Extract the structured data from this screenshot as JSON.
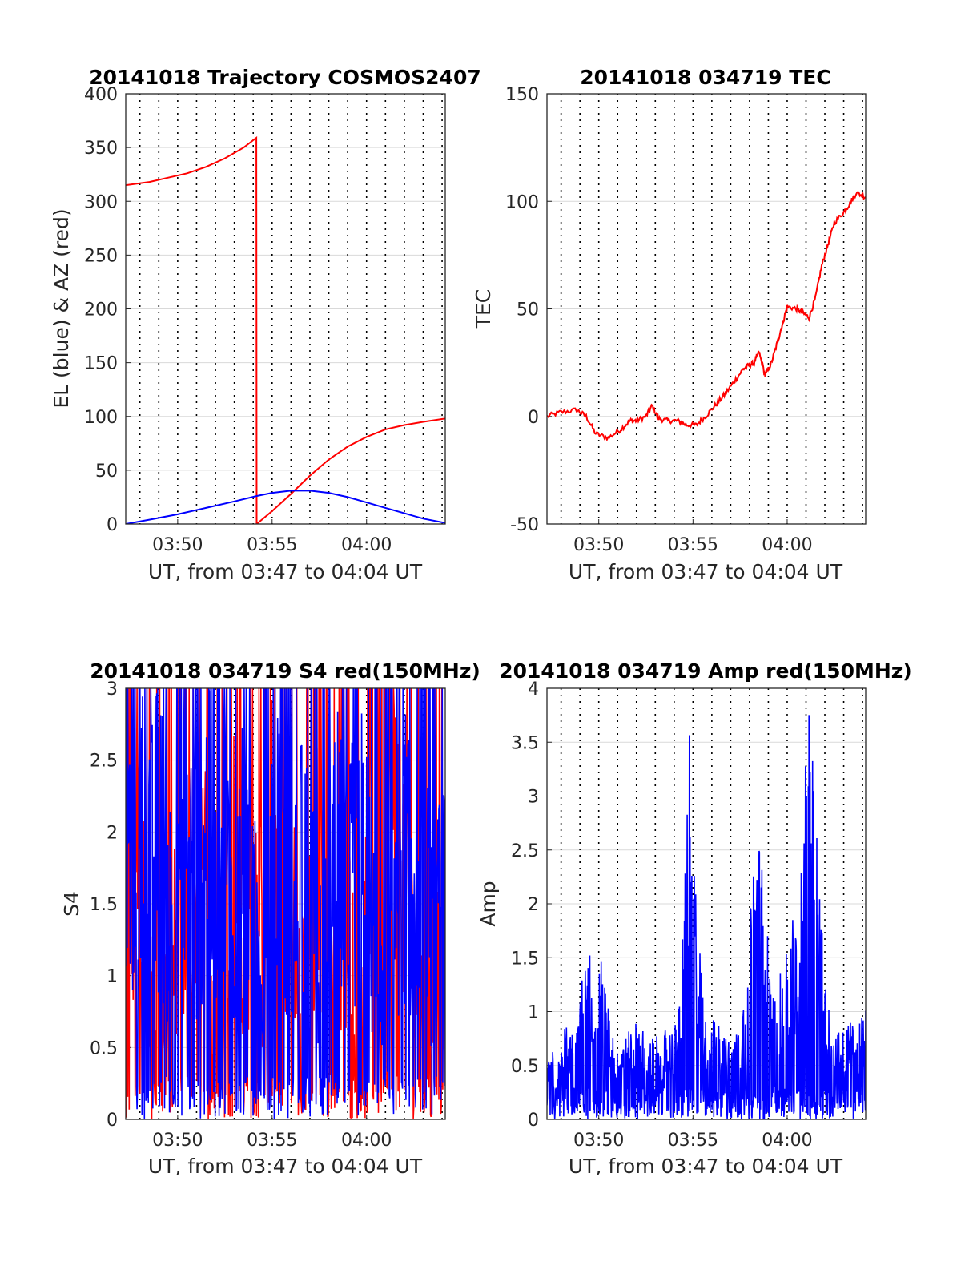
{
  "colors": {
    "red": "#ff0000",
    "blue": "#0000ff",
    "grid_h": "#d9d9d9",
    "grid_v": "#000000",
    "axes": "#262626"
  },
  "chart_data": [
    {
      "type": "line",
      "title": "20141018 Trajectory COSMOS2407",
      "xlabel": "UT, from 03:47 to 04:04 UT",
      "ylabel": "EL (blue) & AZ (red)",
      "xlim_minutes": [
        "03:47:15",
        "04:04:10"
      ],
      "ylim": [
        0,
        400
      ],
      "yticks": [
        0,
        50,
        100,
        150,
        200,
        250,
        300,
        350,
        400
      ],
      "xticks": [
        "03:50",
        "03:55",
        "04:00"
      ],
      "grid": "horizontal solid gridlines, vertical dotted lines every minute",
      "series": [
        {
          "color": "red",
          "x": [
            "03:47:15",
            "03:48:30",
            "03:49:30",
            "03:50:30",
            "03:51:30",
            "03:52:30",
            "03:53:30",
            "03:54:10",
            "03:54:11",
            "03:55:00",
            "03:56:00",
            "03:57:00",
            "03:58:00",
            "03:59:00",
            "04:00:00",
            "04:01:00",
            "04:02:00",
            "04:03:00",
            "04:04:10"
          ],
          "values": [
            315,
            318,
            322,
            326,
            332,
            340,
            350,
            359,
            0,
            12,
            28,
            45,
            60,
            72,
            81,
            88,
            92,
            95,
            98
          ]
        },
        {
          "color": "blue",
          "x": [
            "03:47:15",
            "03:48:30",
            "03:50:00",
            "03:51:30",
            "03:53:00",
            "03:54:10",
            "03:55:00",
            "03:56:00",
            "03:57:00",
            "03:58:00",
            "03:59:00",
            "04:00:00",
            "04:01:00",
            "04:02:00",
            "04:03:00",
            "04:04:10"
          ],
          "values": [
            0,
            4,
            9,
            15,
            21,
            26,
            29,
            31,
            31,
            29,
            25,
            20,
            15,
            10,
            5,
            1
          ]
        }
      ]
    },
    {
      "type": "line",
      "title": "20141018 034719 TEC",
      "xlabel": "UT, from 03:47 to 04:04 UT",
      "ylabel": "TEC",
      "xlim_minutes": [
        "03:47:15",
        "04:04:10"
      ],
      "ylim": [
        -50,
        150
      ],
      "yticks": [
        -50,
        0,
        50,
        100,
        150
      ],
      "xticks": [
        "03:50",
        "03:55",
        "04:00"
      ],
      "grid": "horizontal solid gridlines, vertical dotted lines every minute",
      "series": [
        {
          "color": "red",
          "x": [
            "03:47:15",
            "03:48:00",
            "03:48:50",
            "03:49:20",
            "03:49:50",
            "03:50:30",
            "03:51:10",
            "03:51:40",
            "03:52:00",
            "03:52:30",
            "03:52:50",
            "03:53:10",
            "03:53:40",
            "03:54:10",
            "03:54:40",
            "03:55:10",
            "03:55:40",
            "03:56:10",
            "03:56:40",
            "03:57:10",
            "03:57:40",
            "03:58:00",
            "03:58:15",
            "03:58:30",
            "03:58:50",
            "03:59:10",
            "03:59:30",
            "03:59:45",
            "04:00:00",
            "04:00:30",
            "04:00:50",
            "04:01:10",
            "04:01:30",
            "04:01:50",
            "04:02:10",
            "04:02:30",
            "04:03:00",
            "04:03:20",
            "04:03:40",
            "04:04:10"
          ],
          "values": [
            0,
            2,
            3,
            0,
            -8,
            -10,
            -6,
            -2,
            -2,
            0,
            5,
            -1,
            -2,
            -2,
            -4,
            -4,
            0,
            5,
            10,
            16,
            22,
            24,
            25,
            30,
            19,
            25,
            35,
            43,
            51,
            50,
            48,
            46,
            55,
            70,
            80,
            90,
            95,
            99,
            104,
            102
          ]
        }
      ]
    },
    {
      "type": "line",
      "title": "20141018 034719 S4 red(150MHz)",
      "xlabel": "UT, from 03:47 to 04:04 UT",
      "ylabel": "S4",
      "xlim_minutes": [
        "03:47:15",
        "04:04:10"
      ],
      "ylim": [
        0,
        3
      ],
      "yticks": [
        0,
        0.5,
        1,
        1.5,
        2,
        2.5,
        3
      ],
      "xticks": [
        "03:50",
        "03:55",
        "04:00"
      ],
      "grid": "horizontal solid gridlines, vertical dotted lines every minute",
      "note": "dense noisy red and blue series spanning 0 to 3",
      "series": [
        {
          "color": "red",
          "x": [
            "03:47:15",
            "03:47:45",
            "03:48:30",
            "03:49:00",
            "03:49:30",
            "03:50:00",
            "03:50:30",
            "03:51:00",
            "03:51:30",
            "03:52:00",
            "03:52:30",
            "03:53:00",
            "03:53:30",
            "03:54:00",
            "03:54:30",
            "03:55:00",
            "03:55:30",
            "03:56:00",
            "03:56:30",
            "03:57:00",
            "03:57:30",
            "03:58:00",
            "03:58:30",
            "03:59:00",
            "03:59:30",
            "04:00:00",
            "04:00:30",
            "04:01:00",
            "04:01:30",
            "04:02:00",
            "04:02:30",
            "04:03:00",
            "04:03:30",
            "04:04:10"
          ],
          "values": [
            3.0,
            2.4,
            1.5,
            1.8,
            0.8,
            2.1,
            1.2,
            1.6,
            2.2,
            1.0,
            1.9,
            2.4,
            1.1,
            2.8,
            1.4,
            2.6,
            1.9,
            2.2,
            1.1,
            1.7,
            2.4,
            0.9,
            1.6,
            2.0,
            1.1,
            1.8,
            2.8,
            2.5,
            2.9,
            2.2,
            1.4,
            0.9,
            1.3,
            1.6
          ]
        },
        {
          "color": "blue",
          "x": [
            "03:47:15",
            "03:47:45",
            "03:48:30",
            "03:49:00",
            "03:49:30",
            "03:50:00",
            "03:50:30",
            "03:51:00",
            "03:51:30",
            "03:52:00",
            "03:52:30",
            "03:53:00",
            "03:53:30",
            "03:54:00",
            "03:54:30",
            "03:55:00",
            "03:55:30",
            "03:56:00",
            "03:56:30",
            "03:57:00",
            "03:57:30",
            "03:58:00",
            "03:58:30",
            "03:59:00",
            "03:59:30",
            "04:00:00",
            "04:00:30",
            "04:01:00",
            "04:01:30",
            "04:02:00",
            "04:02:30",
            "04:03:00",
            "04:03:30",
            "04:04:10"
          ],
          "values": [
            2.6,
            2.9,
            2.2,
            2.7,
            2.0,
            1.7,
            2.5,
            2.2,
            2.8,
            2.0,
            2.6,
            1.8,
            2.4,
            2.0,
            0.6,
            2.2,
            2.7,
            1.5,
            2.6,
            2.2,
            1.3,
            2.0,
            2.4,
            1.9,
            2.6,
            2.2,
            1.6,
            0.6,
            2.1,
            2.6,
            1.8,
            2.4,
            1.5,
            2.2
          ]
        }
      ]
    },
    {
      "type": "line",
      "title": "20141018 034719 Amp red(150MHz)",
      "xlabel": "UT, from 03:47 to 04:04 UT",
      "ylabel": "Amp",
      "xlim_minutes": [
        "03:47:15",
        "04:04:10"
      ],
      "ylim": [
        0,
        4
      ],
      "yticks": [
        0,
        0.5,
        1,
        1.5,
        2,
        2.5,
        3,
        3.5,
        4
      ],
      "xticks": [
        "03:50",
        "03:55",
        "04:00"
      ],
      "grid": "horizontal solid gridlines, vertical dotted lines every minute",
      "note": "dense noisy blue series with peaks near 03:55, 03:58 and 04:01",
      "series": [
        {
          "color": "blue",
          "x": [
            "03:47:15",
            "03:47:40",
            "03:48:10",
            "03:48:40",
            "03:49:00",
            "03:49:20",
            "03:49:40",
            "03:50:10",
            "03:50:40",
            "03:51:20",
            "03:52:00",
            "03:52:40",
            "03:53:20",
            "03:54:00",
            "03:54:20",
            "03:54:40",
            "03:54:50",
            "03:55:00",
            "03:55:20",
            "03:55:40",
            "03:56:10",
            "03:56:40",
            "03:57:20",
            "03:57:50",
            "03:58:10",
            "03:58:30",
            "03:58:50",
            "03:59:10",
            "03:59:30",
            "03:59:50",
            "04:00:10",
            "04:00:30",
            "04:00:50",
            "04:01:05",
            "04:01:20",
            "04:01:35",
            "04:01:50",
            "04:02:10",
            "04:02:40",
            "04:03:10",
            "04:03:40",
            "04:04:10"
          ],
          "values": [
            0.6,
            0.7,
            0.9,
            0.8,
            1.2,
            1.4,
            1.6,
            1.4,
            0.8,
            0.7,
            0.9,
            0.7,
            0.8,
            0.8,
            1.1,
            2.9,
            3.5,
            2.5,
            1.6,
            1.0,
            0.9,
            0.8,
            0.9,
            1.0,
            2.3,
            2.5,
            2.0,
            1.1,
            1.2,
            1.5,
            1.8,
            1.7,
            2.6,
            3.7,
            3.3,
            2.7,
            1.9,
            1.0,
            0.8,
            0.9,
            0.8,
            1.0
          ]
        }
      ]
    }
  ]
}
